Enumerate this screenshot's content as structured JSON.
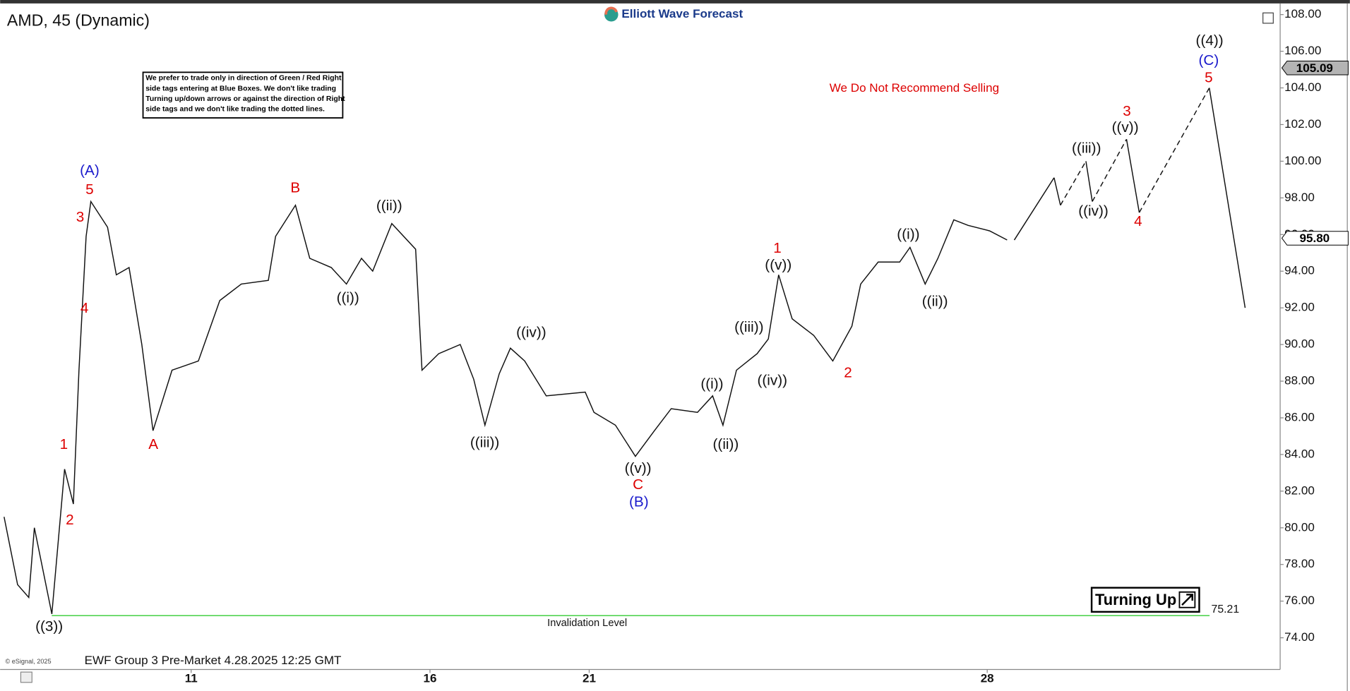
{
  "chart_data": {
    "type": "line",
    "title": "AMD, 45 (Dynamic)",
    "brand": "Elliott Wave Forecast",
    "notice": [
      "We prefer to trade only in direction of Green / Red Right",
      "side tags entering at Blue Boxes. We don't like trading",
      "Turning up/down arrows or against the direction of Right",
      "side tags and we don't like trading the dotted lines."
    ],
    "warning": "We Do Not Recommend Selling",
    "footer": "EWF Group 3 Pre-Market 4.28.2025 12:25 GMT",
    "copyright": "© eSignal, 2025",
    "status": "Turning Up",
    "color": "#111111",
    "x": [
      -2.35,
      -2.18,
      -2.04,
      -1.97,
      -1.75,
      -1.59,
      -1.48,
      -1.41,
      -1.32,
      -1.26,
      -1.05,
      -0.94,
      -0.78,
      -0.62,
      -0.48,
      -0.24,
      0.09,
      0.36,
      0.63,
      0.97,
      1.06,
      1.31,
      1.49,
      1.76,
      1.95,
      2.14,
      2.28,
      2.52,
      2.82,
      2.9,
      3.11,
      3.38,
      3.55,
      3.69,
      3.87,
      4.01,
      4.19,
      4.46,
      4.95,
      5.06,
      5.33,
      5.58,
      5.82,
      6.03,
      6.36,
      6.55,
      6.68,
      6.85,
      7.11,
      7.25,
      7.38,
      7.55,
      7.82,
      8.06,
      8.3,
      8.41,
      8.63,
      8.9,
      9.03,
      9.22,
      9.38,
      9.58,
      9.76,
      10.03,
      10.25
    ],
    "values": [
      80.6,
      76.9,
      76.2,
      80.0,
      75.3,
      83.2,
      81.3,
      88.6,
      95.9,
      97.8,
      96.4,
      93.8,
      94.2,
      90.0,
      85.3,
      88.6,
      89.1,
      92.4,
      93.3,
      93.5,
      95.9,
      97.6,
      94.7,
      94.2,
      93.3,
      94.7,
      94.0,
      96.6,
      95.2,
      88.6,
      89.5,
      90.0,
      88.1,
      85.6,
      88.4,
      89.8,
      89.1,
      87.2,
      87.4,
      86.3,
      85.6,
      83.9,
      85.3,
      86.5,
      86.3,
      87.2,
      85.6,
      88.6,
      89.5,
      90.3,
      93.8,
      91.4,
      90.5,
      89.1,
      91.0,
      93.3,
      94.5,
      94.5,
      95.3,
      93.3,
      94.7,
      96.8,
      96.5,
      96.2,
      95.7
    ],
    "projection_x": [
      10.34,
      10.84,
      10.92,
      11.24,
      11.32,
      11.75,
      11.91,
      12.79,
      13.24
    ],
    "projection_values": [
      95.7,
      99.1,
      97.6,
      100.0,
      97.8,
      101.2,
      97.2,
      104.0,
      92.0
    ],
    "xlim": [
      -2.4,
      13.68
    ],
    "xticks": [
      {
        "value": 0,
        "label": "11"
      },
      {
        "value": 3,
        "label": "16"
      },
      {
        "value": 5,
        "label": "21"
      },
      {
        "value": 10,
        "label": "28"
      }
    ],
    "ylim": [
      72.27,
      108.42
    ],
    "yticks": [
      {
        "value": 74,
        "label": "74.00"
      },
      {
        "value": 76,
        "label": "76.00"
      },
      {
        "value": 78,
        "label": "78.00"
      },
      {
        "value": 80,
        "label": "80.00"
      },
      {
        "value": 82,
        "label": "82.00"
      },
      {
        "value": 84,
        "label": "84.00"
      },
      {
        "value": 86,
        "label": "86.00"
      },
      {
        "value": 88,
        "label": "88.00"
      },
      {
        "value": 90,
        "label": "90.00"
      },
      {
        "value": 92,
        "label": "92.00"
      },
      {
        "value": 94,
        "label": "94.00"
      },
      {
        "value": 96,
        "label": "96.00"
      },
      {
        "value": 98,
        "label": "98.00"
      },
      {
        "value": 100,
        "label": "100.00"
      },
      {
        "value": 102,
        "label": "102.00"
      },
      {
        "value": 104,
        "label": "104.00"
      },
      {
        "value": 106,
        "label": "106.00"
      },
      {
        "value": 108,
        "label": "108.00"
      }
    ],
    "invalidation": {
      "label": "Invalidation Level",
      "value": 75.21,
      "color": "#33cc33"
    },
    "price_tags": [
      {
        "value": 105.09,
        "label": "105.09",
        "color": "#b4b4b4"
      },
      {
        "value": 95.8,
        "label": "95.80",
        "color": "#ffffff"
      }
    ],
    "annotations": [
      {
        "text": "((3))",
        "color": "#111111"
      },
      {
        "text": "1",
        "color": "#dd0000"
      },
      {
        "text": "2",
        "color": "#dd0000"
      },
      {
        "text": "4",
        "color": "#dd0000"
      },
      {
        "text": "3",
        "color": "#dd0000"
      },
      {
        "text": "5",
        "color": "#dd0000"
      },
      {
        "text": "(A)",
        "color": "#1a1acc"
      },
      {
        "text": "A",
        "color": "#dd0000"
      },
      {
        "text": "B",
        "color": "#dd0000"
      },
      {
        "text": "((i))",
        "color": "#111111"
      },
      {
        "text": "((ii))",
        "color": "#111111"
      },
      {
        "text": "((iii))",
        "color": "#111111"
      },
      {
        "text": "((iv))",
        "color": "#111111"
      },
      {
        "text": "((v))",
        "color": "#111111"
      },
      {
        "text": "C",
        "color": "#dd0000"
      },
      {
        "text": "(B)",
        "color": "#1a1acc"
      },
      {
        "text": "((i))",
        "color": "#111111"
      },
      {
        "text": "((ii))",
        "color": "#111111"
      },
      {
        "text": "((iii))",
        "color": "#111111"
      },
      {
        "text": "((iv))",
        "color": "#111111"
      },
      {
        "text": "((v))",
        "color": "#111111"
      },
      {
        "text": "1",
        "color": "#dd0000"
      },
      {
        "text": "2",
        "color": "#dd0000"
      },
      {
        "text": "((i))",
        "color": "#111111"
      },
      {
        "text": "((ii))",
        "color": "#111111"
      },
      {
        "text": "((iii))",
        "color": "#111111"
      },
      {
        "text": "((iv))",
        "color": "#111111"
      },
      {
        "text": "((v))",
        "color": "#111111"
      },
      {
        "text": "3",
        "color": "#dd0000"
      },
      {
        "text": "4",
        "color": "#dd0000"
      },
      {
        "text": "5",
        "color": "#dd0000"
      },
      {
        "text": "(C)",
        "color": "#1a1acc"
      },
      {
        "text": "((4))",
        "color": "#111111"
      }
    ]
  }
}
